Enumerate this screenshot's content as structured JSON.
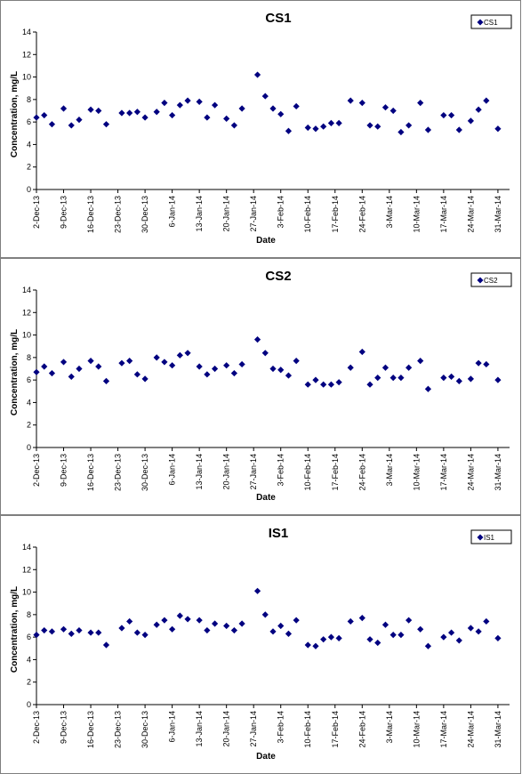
{
  "marker_color": "#000080",
  "chart_data": [
    {
      "type": "scatter",
      "title": "CS1",
      "xlabel": "Date",
      "ylabel": "Concentration, mg/L",
      "ylim": [
        0,
        14
      ],
      "yticks": [
        0,
        2,
        4,
        6,
        8,
        10,
        12,
        14
      ],
      "xlim": [
        "2-Dec-13",
        "3-Apr-14"
      ],
      "xtick_labels": [
        "2-Dec-13",
        "9-Dec-13",
        "16-Dec-13",
        "23-Dec-13",
        "30-Dec-13",
        "6-Jan-14",
        "13-Jan-14",
        "20-Jan-14",
        "27-Jan-14",
        "3-Feb-14",
        "10-Feb-14",
        "17-Feb-14",
        "24-Feb-14",
        "3-Mar-14",
        "10-Mar-14",
        "17-Mar-14",
        "24-Mar-14",
        "31-Mar-14"
      ],
      "legend": {
        "position": "top-right",
        "entries": [
          "CS1"
        ]
      },
      "grid": false,
      "series": [
        {
          "name": "CS1",
          "x": [
            "2-Dec-13",
            "4-Dec-13",
            "6-Dec-13",
            "9-Dec-13",
            "11-Dec-13",
            "13-Dec-13",
            "16-Dec-13",
            "18-Dec-13",
            "20-Dec-13",
            "24-Dec-13",
            "26-Dec-13",
            "28-Dec-13",
            "30-Dec-13",
            "2-Jan-14",
            "4-Jan-14",
            "6-Jan-14",
            "8-Jan-14",
            "10-Jan-14",
            "13-Jan-14",
            "15-Jan-14",
            "17-Jan-14",
            "20-Jan-14",
            "22-Jan-14",
            "24-Jan-14",
            "28-Jan-14",
            "30-Jan-14",
            "1-Feb-14",
            "3-Feb-14",
            "5-Feb-14",
            "7-Feb-14",
            "10-Feb-14",
            "12-Feb-14",
            "14-Feb-14",
            "16-Feb-14",
            "18-Feb-14",
            "21-Feb-14",
            "24-Feb-14",
            "26-Feb-14",
            "28-Feb-14",
            "2-Mar-14",
            "4-Mar-14",
            "6-Mar-14",
            "8-Mar-14",
            "11-Mar-14",
            "13-Mar-14",
            "17-Mar-14",
            "19-Mar-14",
            "21-Mar-14",
            "24-Mar-14",
            "26-Mar-14",
            "28-Mar-14",
            "31-Mar-14"
          ],
          "y": [
            6.4,
            6.6,
            5.8,
            7.2,
            5.7,
            6.2,
            7.1,
            7.0,
            5.8,
            6.8,
            6.8,
            6.9,
            6.4,
            6.9,
            7.7,
            6.6,
            7.5,
            7.9,
            7.8,
            6.4,
            7.5,
            6.3,
            5.7,
            7.2,
            10.2,
            8.3,
            7.2,
            6.7,
            5.2,
            7.4,
            5.5,
            5.4,
            5.6,
            5.9,
            5.9,
            7.9,
            7.7,
            5.7,
            5.6,
            7.3,
            7.0,
            5.1,
            5.7,
            7.7,
            5.3,
            6.6,
            6.6,
            5.3,
            6.1,
            7.1,
            7.9,
            5.4
          ]
        }
      ]
    },
    {
      "type": "scatter",
      "title": "CS2",
      "xlabel": "Date",
      "ylabel": "Concentration, mg/L",
      "ylim": [
        0,
        14
      ],
      "yticks": [
        0,
        2,
        4,
        6,
        8,
        10,
        12,
        14
      ],
      "xlim": [
        "2-Dec-13",
        "3-Apr-14"
      ],
      "xtick_labels": [
        "2-Dec-13",
        "9-Dec-13",
        "16-Dec-13",
        "23-Dec-13",
        "30-Dec-13",
        "6-Jan-14",
        "13-Jan-14",
        "20-Jan-14",
        "27-Jan-14",
        "3-Feb-14",
        "10-Feb-14",
        "17-Feb-14",
        "24-Feb-14",
        "3-Mar-14",
        "10-Mar-14",
        "17-Mar-14",
        "24-Mar-14",
        "31-Mar-14"
      ],
      "legend": {
        "position": "top-right",
        "entries": [
          "CS2"
        ]
      },
      "grid": false,
      "series": [
        {
          "name": "CS2",
          "x": [
            "2-Dec-13",
            "4-Dec-13",
            "6-Dec-13",
            "9-Dec-13",
            "11-Dec-13",
            "13-Dec-13",
            "16-Dec-13",
            "18-Dec-13",
            "20-Dec-13",
            "24-Dec-13",
            "26-Dec-13",
            "28-Dec-13",
            "30-Dec-13",
            "2-Jan-14",
            "4-Jan-14",
            "6-Jan-14",
            "8-Jan-14",
            "10-Jan-14",
            "13-Jan-14",
            "15-Jan-14",
            "17-Jan-14",
            "20-Jan-14",
            "22-Jan-14",
            "24-Jan-14",
            "28-Jan-14",
            "30-Jan-14",
            "1-Feb-14",
            "3-Feb-14",
            "5-Feb-14",
            "7-Feb-14",
            "10-Feb-14",
            "12-Feb-14",
            "14-Feb-14",
            "16-Feb-14",
            "18-Feb-14",
            "21-Feb-14",
            "24-Feb-14",
            "26-Feb-14",
            "28-Feb-14",
            "2-Mar-14",
            "4-Mar-14",
            "6-Mar-14",
            "8-Mar-14",
            "11-Mar-14",
            "13-Mar-14",
            "17-Mar-14",
            "19-Mar-14",
            "21-Mar-14",
            "24-Mar-14",
            "26-Mar-14",
            "28-Mar-14",
            "31-Mar-14"
          ],
          "y": [
            6.7,
            7.2,
            6.6,
            7.6,
            6.3,
            7.0,
            7.7,
            7.2,
            5.9,
            7.5,
            7.7,
            6.5,
            6.1,
            8.0,
            7.6,
            7.3,
            8.2,
            8.4,
            7.2,
            6.5,
            7.0,
            7.3,
            6.6,
            7.4,
            9.6,
            8.4,
            7.0,
            6.9,
            6.4,
            7.7,
            5.6,
            6.0,
            5.6,
            5.6,
            5.8,
            7.1,
            8.5,
            5.6,
            6.2,
            7.1,
            6.2,
            6.2,
            7.1,
            7.7,
            5.2,
            6.2,
            6.3,
            5.9,
            6.1,
            7.5,
            7.4,
            6.0
          ]
        }
      ]
    },
    {
      "type": "scatter",
      "title": "IS1",
      "xlabel": "Date",
      "ylabel": "Concentration, mg/L",
      "ylim": [
        0,
        14
      ],
      "yticks": [
        0,
        2,
        4,
        6,
        8,
        10,
        12,
        14
      ],
      "xlim": [
        "2-Dec-13",
        "3-Apr-14"
      ],
      "xtick_labels": [
        "2-Dec-13",
        "9-Dec-13",
        "16-Dec-13",
        "23-Dec-13",
        "30-Dec-13",
        "6-Jan-14",
        "13-Jan-14",
        "20-Jan-14",
        "27-Jan-14",
        "3-Feb-14",
        "10-Feb-14",
        "17-Feb-14",
        "24-Feb-14",
        "3-Mar-14",
        "10-Mar-14",
        "17-Mar-14",
        "24-Mar-14",
        "31-Mar-14"
      ],
      "legend": {
        "position": "top-right",
        "entries": [
          "IS1"
        ]
      },
      "grid": false,
      "series": [
        {
          "name": "IS1",
          "x": [
            "2-Dec-13",
            "4-Dec-13",
            "6-Dec-13",
            "9-Dec-13",
            "11-Dec-13",
            "13-Dec-13",
            "16-Dec-13",
            "18-Dec-13",
            "20-Dec-13",
            "24-Dec-13",
            "26-Dec-13",
            "28-Dec-13",
            "30-Dec-13",
            "2-Jan-14",
            "4-Jan-14",
            "6-Jan-14",
            "8-Jan-14",
            "10-Jan-14",
            "13-Jan-14",
            "15-Jan-14",
            "17-Jan-14",
            "20-Jan-14",
            "22-Jan-14",
            "24-Jan-14",
            "28-Jan-14",
            "30-Jan-14",
            "1-Feb-14",
            "3-Feb-14",
            "5-Feb-14",
            "7-Feb-14",
            "10-Feb-14",
            "12-Feb-14",
            "14-Feb-14",
            "16-Feb-14",
            "18-Feb-14",
            "21-Feb-14",
            "24-Feb-14",
            "26-Feb-14",
            "28-Feb-14",
            "2-Mar-14",
            "4-Mar-14",
            "6-Mar-14",
            "8-Mar-14",
            "11-Mar-14",
            "13-Mar-14",
            "17-Mar-14",
            "19-Mar-14",
            "21-Mar-14",
            "24-Mar-14",
            "26-Mar-14",
            "28-Mar-14",
            "31-Mar-14"
          ],
          "y": [
            6.2,
            6.6,
            6.5,
            6.7,
            6.3,
            6.6,
            6.4,
            6.4,
            5.3,
            6.8,
            7.4,
            6.4,
            6.2,
            7.1,
            7.5,
            6.7,
            7.9,
            7.6,
            7.5,
            6.6,
            7.2,
            7.0,
            6.6,
            7.2,
            10.1,
            8.0,
            6.5,
            7.0,
            6.3,
            7.5,
            5.3,
            5.2,
            5.8,
            6.0,
            5.9,
            7.4,
            7.7,
            5.8,
            5.5,
            7.1,
            6.2,
            6.2,
            7.5,
            6.7,
            5.2,
            6.0,
            6.4,
            5.7,
            6.8,
            6.5,
            7.4,
            5.9
          ]
        }
      ]
    }
  ]
}
